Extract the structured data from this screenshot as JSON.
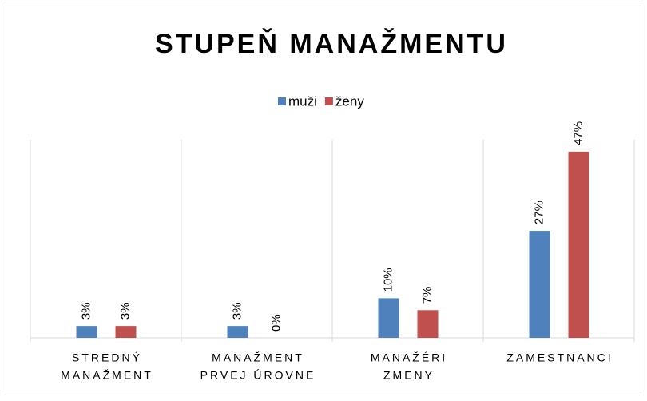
{
  "chart_data": {
    "type": "bar",
    "title": "STUPEŇ MANAŽMENTU",
    "categories": [
      [
        "STREDNÝ",
        "MANAŽMENT"
      ],
      [
        "MANAŽMENT",
        "PRVEJ ÚROVNE"
      ],
      [
        "MANAŽÉRI",
        "ZMENY"
      ],
      [
        "ZAMESTNANCI"
      ]
    ],
    "series": [
      {
        "name": "muži",
        "color": "#4f81bd",
        "values": [
          3,
          3,
          10,
          27
        ],
        "value_labels": [
          "3%",
          "3%",
          "10%",
          "27%"
        ]
      },
      {
        "name": "ženy",
        "color": "#c0504d",
        "values": [
          3,
          0,
          7,
          47
        ],
        "value_labels": [
          "3%",
          "0%",
          "7%",
          "47%"
        ]
      }
    ],
    "ylim": [
      0,
      50
    ],
    "legend": "top"
  }
}
